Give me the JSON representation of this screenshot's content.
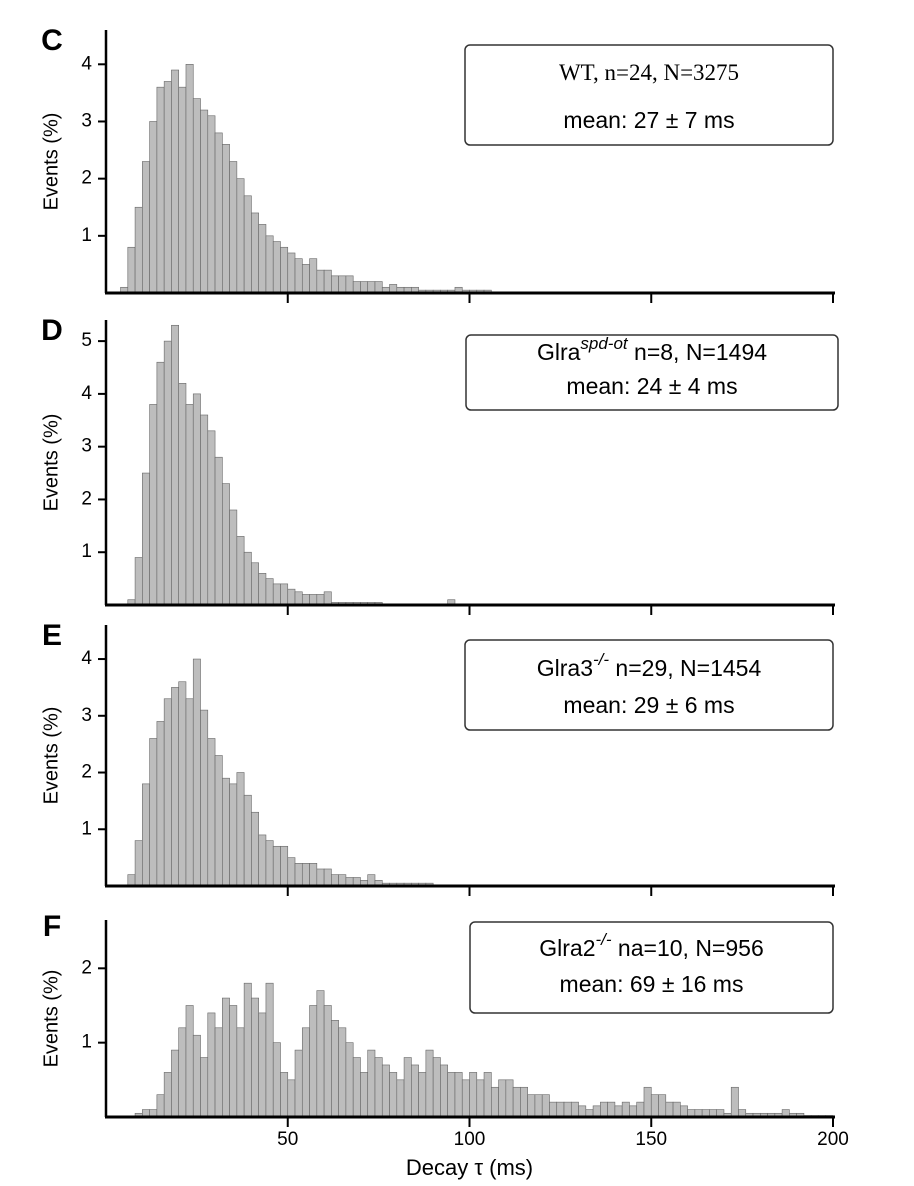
{
  "chart_data": [
    {
      "type": "histogram",
      "panel": "C",
      "ylabel": "Events (%)",
      "annotation": [
        {
          "base": "WT, n=24, N=3275"
        },
        {
          "base": "mean: 27 ± 7 ms"
        }
      ],
      "bins": [
        4,
        6,
        8,
        10,
        12,
        14,
        16,
        18,
        20,
        22,
        24,
        26,
        28,
        30,
        32,
        34,
        36,
        38,
        40,
        42,
        44,
        46,
        48,
        50,
        52,
        54,
        56,
        58,
        60,
        62,
        64,
        66,
        68,
        70,
        72,
        74,
        76,
        78,
        80,
        82,
        84,
        86,
        88,
        90,
        92,
        94,
        96,
        98,
        100,
        102,
        104,
        106
      ],
      "counts": [
        0.1,
        0.8,
        1.5,
        2.3,
        3.0,
        3.6,
        3.7,
        3.9,
        3.6,
        4.0,
        3.4,
        3.2,
        3.1,
        2.8,
        2.6,
        2.3,
        2.0,
        1.7,
        1.4,
        1.2,
        1.0,
        0.9,
        0.8,
        0.7,
        0.6,
        0.5,
        0.6,
        0.4,
        0.4,
        0.3,
        0.3,
        0.3,
        0.2,
        0.2,
        0.2,
        0.2,
        0.1,
        0.15,
        0.1,
        0.1,
        0.1,
        0.05,
        0.05,
        0.05,
        0.05,
        0.05,
        0.1,
        0.05,
        0.05,
        0.05,
        0.05
      ],
      "color": "#bdbdbd",
      "xlim": [
        0,
        200
      ],
      "xticks": [
        50,
        100,
        150,
        200
      ],
      "ylim": [
        0,
        4.6
      ],
      "yticks": [
        1,
        2,
        3,
        4
      ]
    },
    {
      "type": "histogram",
      "panel": "D",
      "ylabel": "Events (%)",
      "annotation": [
        {
          "base": "Glra",
          "sup": "spd-ot",
          "rest": " n=8, N=1494"
        },
        {
          "base": "mean: 24 ± 4 ms"
        }
      ],
      "bins": [
        6,
        8,
        10,
        12,
        14,
        16,
        18,
        20,
        22,
        24,
        26,
        28,
        30,
        32,
        34,
        36,
        38,
        40,
        42,
        44,
        46,
        48,
        50,
        52,
        54,
        56,
        58,
        60,
        62,
        64,
        66,
        68,
        70,
        72,
        74,
        76,
        78,
        80,
        82,
        84,
        86,
        88,
        90,
        92,
        94,
        96,
        98,
        100
      ],
      "counts": [
        0.1,
        0.9,
        2.5,
        3.8,
        4.6,
        5.0,
        5.3,
        4.2,
        3.8,
        4.0,
        3.6,
        3.3,
        2.8,
        2.3,
        1.8,
        1.3,
        1.0,
        0.8,
        0.6,
        0.5,
        0.4,
        0.4,
        0.3,
        0.25,
        0.2,
        0.2,
        0.2,
        0.25,
        0.05,
        0.05,
        0.05,
        0.05,
        0.05,
        0.05,
        0.05,
        0,
        0,
        0,
        0,
        0.02,
        0,
        0,
        0,
        0,
        0.1,
        0,
        0
      ],
      "color": "#bdbdbd",
      "xlim": [
        0,
        200
      ],
      "xticks": [
        50,
        100,
        150,
        200
      ],
      "ylim": [
        0,
        5.4
      ],
      "yticks": [
        1,
        2,
        3,
        4,
        5
      ]
    },
    {
      "type": "histogram",
      "panel": "E",
      "ylabel": "Events (%)",
      "annotation": [
        {
          "base": "Glra3",
          "sup": "-/-",
          "rest": " n=29, N=1454"
        },
        {
          "base": "mean: 29 ± 6 ms"
        }
      ],
      "bins": [
        6,
        8,
        10,
        12,
        14,
        16,
        18,
        20,
        22,
        24,
        26,
        28,
        30,
        32,
        34,
        36,
        38,
        40,
        42,
        44,
        46,
        48,
        50,
        52,
        54,
        56,
        58,
        60,
        62,
        64,
        66,
        68,
        70,
        72,
        74,
        76,
        78,
        80,
        82,
        84,
        86,
        88,
        90,
        92,
        94,
        96,
        98,
        100,
        102,
        104,
        106,
        108,
        110
      ],
      "counts": [
        0.2,
        0.8,
        1.8,
        2.6,
        2.9,
        3.3,
        3.5,
        3.6,
        3.3,
        4.0,
        3.1,
        2.6,
        2.3,
        1.9,
        1.8,
        2.0,
        1.6,
        1.3,
        0.9,
        0.8,
        0.7,
        0.7,
        0.5,
        0.4,
        0.4,
        0.4,
        0.3,
        0.3,
        0.2,
        0.2,
        0.15,
        0.15,
        0.1,
        0.2,
        0.1,
        0.05,
        0.05,
        0.05,
        0.05,
        0.05,
        0.05,
        0.05,
        0.02,
        0.02,
        0.02,
        0.02,
        0.02,
        0.02,
        0.02,
        0.02,
        0.02,
        0.02
      ],
      "color": "#bdbdbd",
      "xlim": [
        0,
        200
      ],
      "xticks": [
        50,
        100,
        150,
        200
      ],
      "ylim": [
        0,
        4.6
      ],
      "yticks": [
        1,
        2,
        3,
        4
      ]
    },
    {
      "type": "histogram",
      "panel": "F",
      "ylabel": "Events (%)",
      "xlabel": "Decay τ (ms)",
      "annotation": [
        {
          "base": "Glra2",
          "sup": "-/-",
          "rest": " na=10, N=956"
        },
        {
          "base": "mean: 69 ± 16 ms"
        }
      ],
      "bins": [
        8,
        10,
        12,
        14,
        16,
        18,
        20,
        22,
        24,
        26,
        28,
        30,
        32,
        34,
        36,
        38,
        40,
        42,
        44,
        46,
        48,
        50,
        52,
        54,
        56,
        58,
        60,
        62,
        64,
        66,
        68,
        70,
        72,
        74,
        76,
        78,
        80,
        82,
        84,
        86,
        88,
        90,
        92,
        94,
        96,
        98,
        100,
        102,
        104,
        106,
        108,
        110,
        112,
        114,
        116,
        118,
        120,
        122,
        124,
        126,
        128,
        130,
        132,
        134,
        136,
        138,
        140,
        142,
        144,
        146,
        148,
        150,
        152,
        154,
        156,
        158,
        160,
        162,
        164,
        166,
        168,
        170,
        172,
        174,
        176,
        178,
        180,
        182,
        184,
        186,
        188,
        190,
        192,
        194,
        196,
        198,
        200
      ],
      "counts": [
        0.05,
        0.1,
        0.1,
        0.3,
        0.6,
        0.9,
        1.2,
        1.5,
        1.1,
        0.8,
        1.4,
        1.2,
        1.6,
        1.5,
        1.2,
        1.8,
        1.6,
        1.4,
        1.8,
        1.0,
        0.6,
        0.5,
        0.9,
        1.2,
        1.5,
        1.7,
        1.5,
        1.3,
        1.2,
        1.0,
        0.8,
        0.6,
        0.9,
        0.8,
        0.7,
        0.6,
        0.5,
        0.8,
        0.7,
        0.6,
        0.9,
        0.8,
        0.7,
        0.6,
        0.6,
        0.5,
        0.6,
        0.5,
        0.6,
        0.4,
        0.5,
        0.5,
        0.4,
        0.4,
        0.3,
        0.3,
        0.3,
        0.2,
        0.2,
        0.2,
        0.2,
        0.15,
        0.1,
        0.15,
        0.2,
        0.2,
        0.15,
        0.2,
        0.15,
        0.2,
        0.4,
        0.3,
        0.3,
        0.2,
        0.2,
        0.15,
        0.1,
        0.1,
        0.1,
        0.1,
        0.1,
        0.05,
        0.4,
        0.1,
        0.05,
        0.05,
        0.05,
        0.05,
        0.05,
        0.1,
        0.05,
        0.05,
        0.02,
        0.02,
        0.02,
        0.02
      ],
      "color": "#bdbdbd",
      "xlim": [
        0,
        200
      ],
      "xticks": [
        50,
        100,
        150,
        200
      ],
      "ylim": [
        0,
        2.65
      ],
      "yticks": [
        1,
        2
      ]
    }
  ]
}
